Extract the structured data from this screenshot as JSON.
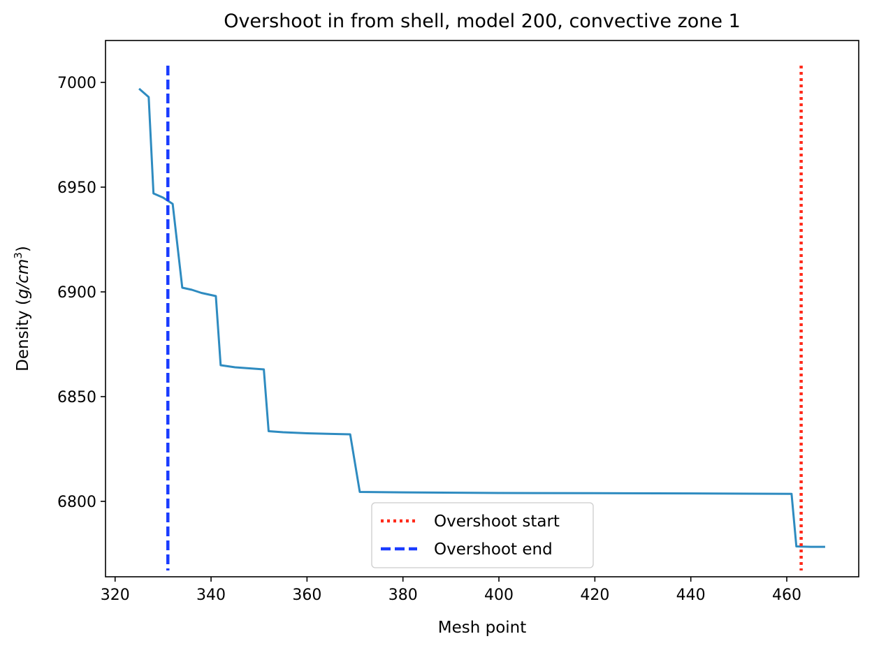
{
  "chart_data": {
    "type": "line",
    "title": "Overshoot in from shell, model 200, convective zone 1",
    "xlabel": "Mesh point",
    "ylabel_main": "Density (",
    "ylabel_unit_base": "g/cm",
    "ylabel_unit_exp": "3",
    "ylabel_close": ")",
    "xlim": [
      318,
      475
    ],
    "ylim": [
      6764,
      7020
    ],
    "xticks": [
      320,
      340,
      360,
      380,
      400,
      420,
      440,
      460
    ],
    "yticks": [
      6800,
      6850,
      6900,
      6950,
      7000
    ],
    "grid": false,
    "legend_position": "bottom-center",
    "series": [
      {
        "color": "#2e8bc0",
        "points": [
          [
            325,
            6997
          ],
          [
            327,
            6993
          ],
          [
            328,
            6947
          ],
          [
            330,
            6945
          ],
          [
            332,
            6942
          ],
          [
            334,
            6902
          ],
          [
            336,
            6901
          ],
          [
            338,
            6899.5
          ],
          [
            341,
            6898
          ],
          [
            342,
            6865
          ],
          [
            345,
            6864
          ],
          [
            348,
            6863.5
          ],
          [
            351,
            6863
          ],
          [
            352,
            6833.5
          ],
          [
            355,
            6833
          ],
          [
            360,
            6832.5
          ],
          [
            365,
            6832.2
          ],
          [
            369,
            6832
          ],
          [
            371,
            6804.5
          ],
          [
            380,
            6804.3
          ],
          [
            400,
            6804
          ],
          [
            420,
            6803.9
          ],
          [
            440,
            6803.8
          ],
          [
            461,
            6803.6
          ],
          [
            462,
            6778.5
          ],
          [
            465,
            6778.3
          ],
          [
            468,
            6778.3
          ]
        ]
      }
    ],
    "vlines": [
      {
        "name": "Overshoot start",
        "x": 463,
        "ymin": 6767,
        "ymax": 7008,
        "color": "#ff2a1a",
        "style": "dotted"
      },
      {
        "name": "Overshoot end",
        "x": 331,
        "ymin": 6767,
        "ymax": 7008,
        "color": "#1a3cff",
        "style": "dashed"
      }
    ]
  }
}
